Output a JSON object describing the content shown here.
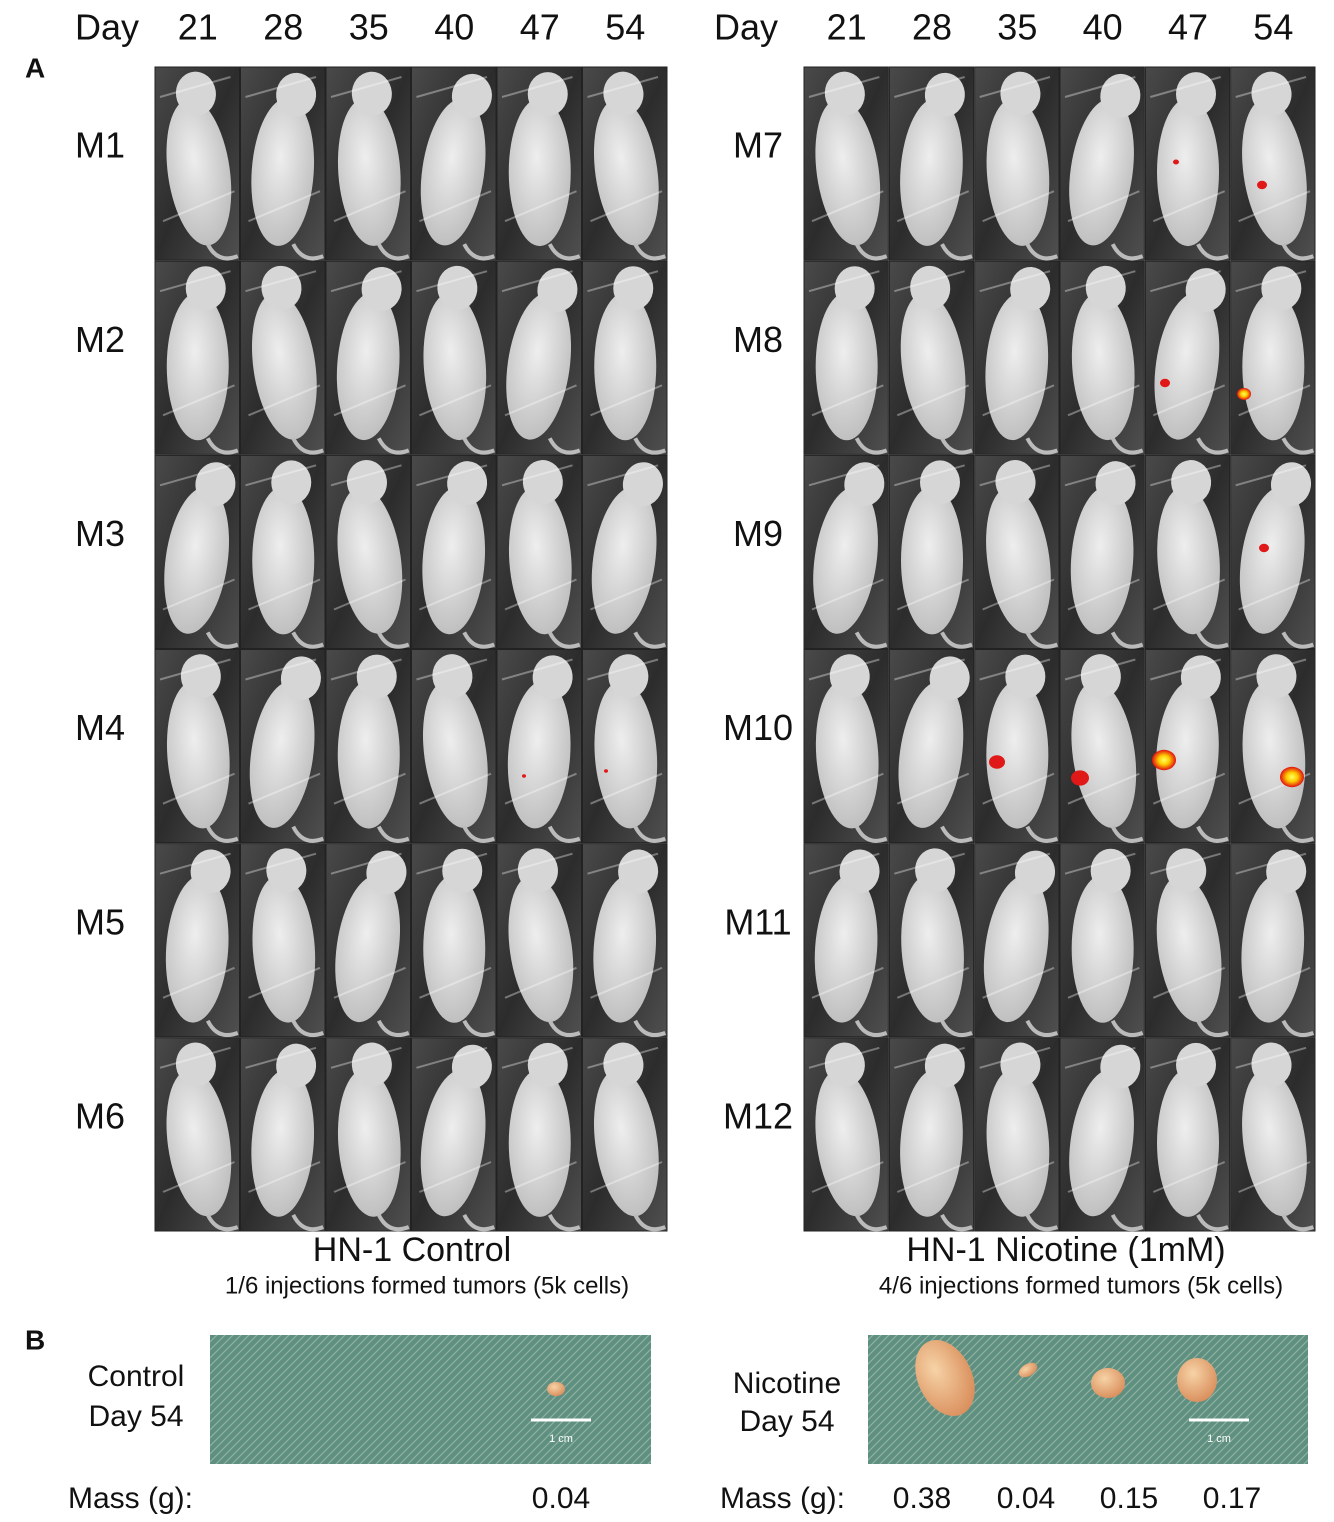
{
  "panel_a": {
    "label": "A",
    "groups": [
      {
        "day_header": "Day",
        "days": [
          21,
          28,
          35,
          40,
          47,
          54
        ],
        "mice": [
          "M1",
          "M2",
          "M3",
          "M4",
          "M5",
          "M6"
        ],
        "title": "HN-1 Control",
        "subtitle": "1/6 injections formed tumors (5k cells)"
      },
      {
        "day_header": "Day",
        "days": [
          21,
          28,
          35,
          40,
          47,
          54
        ],
        "mice": [
          "M7",
          "M8",
          "M9",
          "M10",
          "M11",
          "M12"
        ],
        "title": "HN-1 Nicotine (1mM)",
        "subtitle": "4/6 injections formed tumors (5k cells)"
      }
    ]
  },
  "panel_b": {
    "label": "B",
    "groups": [
      {
        "caption": [
          "Control",
          "Day 54"
        ],
        "scale_bar": "1 cm",
        "mass_label": "Mass (g):",
        "masses": [
          0.04
        ]
      },
      {
        "caption": [
          "Nicotine",
          "Day 54"
        ],
        "scale_bar": "1 cm",
        "mass_label": "Mass (g):",
        "masses": [
          0.38,
          0.04,
          0.15,
          0.17
        ]
      }
    ]
  }
}
